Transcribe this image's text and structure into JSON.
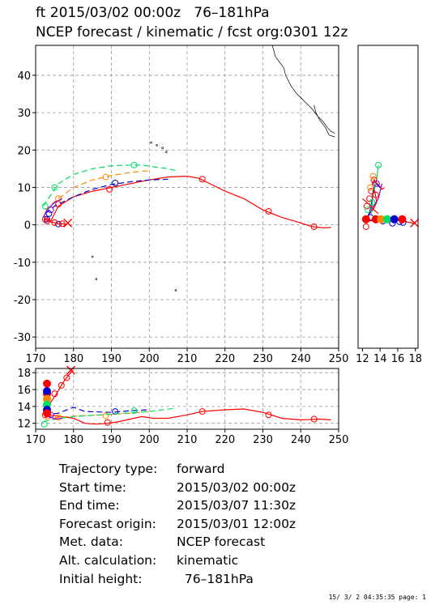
{
  "header": {
    "line1": "ft 2015/03/02 00:00z   76–181hPa",
    "line2": "NCEP forecast / kinematic / fcst org:0301 12z"
  },
  "info": [
    {
      "key": "Trajectory type:",
      "value": "forward"
    },
    {
      "key": "Start time:",
      "value": "2015/03/02 00:00z"
    },
    {
      "key": "End time:",
      "value": "2015/03/07 11:30z"
    },
    {
      "key": "Forecast origin:",
      "value": "2015/03/01 12:00z"
    },
    {
      "key": "Met. data:",
      "value": "NCEP forecast"
    },
    {
      "key": "Alt. calculation:",
      "value": "kinematic"
    },
    {
      "key": "Initial height:",
      "value": "  76–181hPa"
    }
  ],
  "footer": "15/ 3/ 2 04:35:35 page: 1",
  "colors": {
    "red": "#ff0000",
    "blue": "#0000cc",
    "orange": "#ff8800",
    "green": "#00dd66",
    "purple": "#8800cc",
    "grid": "#999999"
  },
  "chart_data": [
    {
      "type": "line",
      "panel": "main",
      "xlim": [
        170,
        250
      ],
      "ylim": [
        -33,
        48
      ],
      "xticks": [
        170,
        180,
        190,
        200,
        210,
        220,
        230,
        240,
        250
      ],
      "yticks": [
        -30,
        -20,
        -10,
        0,
        10,
        20,
        30,
        40
      ],
      "grid": true,
      "series": [
        {
          "color": "red",
          "dash": false,
          "points": [
            [
              172.5,
              1.5
            ],
            [
              174,
              1
            ],
            [
              176,
              5
            ],
            [
              180,
              7.5
            ],
            [
              185,
              9
            ],
            [
              190,
              10
            ],
            [
              195,
              11
            ],
            [
              200,
              12
            ],
            [
              205,
              12.8
            ],
            [
              210,
              13
            ],
            [
              213,
              12.5
            ],
            [
              215,
              11.5
            ],
            [
              220,
              9
            ],
            [
              225,
              7
            ],
            [
              230,
              4
            ],
            [
              235,
              2
            ],
            [
              240,
              0.5
            ],
            [
              243,
              -0.5
            ],
            [
              246,
              -0.8
            ],
            [
              248,
              -0.7
            ]
          ],
          "markers": [
            [
              176,
              5.5
            ],
            [
              189.5,
              9.5
            ],
            [
              214,
              12.2
            ],
            [
              231.5,
              3.6
            ],
            [
              243.5,
              -0.5
            ],
            [
              172.5,
              1.5
            ]
          ]
        },
        {
          "color": "blue",
          "dash": true,
          "points": [
            [
              172.5,
              3
            ],
            [
              175,
              5
            ],
            [
              180,
              7.5
            ],
            [
              185,
              9.5
            ],
            [
              190,
              10.8
            ],
            [
              195,
              11.5
            ],
            [
              200,
              12
            ],
            [
              205,
              12.2
            ]
          ],
          "markers": [
            [
              173.5,
              3
            ],
            [
              191,
              11.2
            ],
            [
              173,
              1.5
            ],
            [
              176,
              0.2
            ]
          ]
        },
        {
          "color": "orange",
          "dash": true,
          "points": [
            [
              172.5,
              4
            ],
            [
              176,
              7
            ],
            [
              180,
              10
            ],
            [
              185,
              12
            ],
            [
              190,
              13.2
            ],
            [
              195,
              14
            ],
            [
              200,
              14.5
            ]
          ],
          "markers": [
            [
              176,
              7
            ],
            [
              188.5,
              12.8
            ]
          ]
        },
        {
          "color": "green",
          "dash": true,
          "points": [
            [
              172,
              5
            ],
            [
              174,
              8
            ],
            [
              176,
              11
            ],
            [
              180,
              13.5
            ],
            [
              185,
              15
            ],
            [
              190,
              15.8
            ],
            [
              195,
              16
            ],
            [
              198,
              16
            ],
            [
              205,
              15
            ],
            [
              207,
              14.5
            ]
          ],
          "markers": [
            [
              172.5,
              5
            ],
            [
              175,
              10
            ],
            [
              196,
              16
            ]
          ]
        },
        {
          "color": "purple",
          "dash": false,
          "points": [
            [
              172,
              2
            ],
            [
              173,
              4
            ],
            [
              175,
              6
            ],
            [
              177,
              7
            ]
          ],
          "markers": [
            [
              174,
              4
            ]
          ]
        },
        {
          "color": "red",
          "dash": false,
          "points": [
            [
              172.3,
              1.5
            ],
            [
              174,
              0.8
            ],
            [
              176,
              0.3
            ],
            [
              178,
              0.2
            ]
          ],
          "markers": [
            [
              173,
              1
            ],
            [
              175,
              0.6
            ],
            [
              177,
              0.3
            ]
          ]
        }
      ],
      "source_x": [
        178.5,
        0.5
      ]
    },
    {
      "type": "line",
      "panel": "side",
      "xlim": [
        11.5,
        18.3
      ],
      "ylim": [
        -33,
        48
      ],
      "xticks": [
        12,
        14,
        16,
        18
      ],
      "grid": false,
      "series": [
        {
          "color": "red",
          "dash": false,
          "points": [
            [
              12.4,
              1.5
            ],
            [
              12.8,
              3
            ],
            [
              13.2,
              4
            ],
            [
              13.6,
              6
            ],
            [
              13.4,
              9
            ],
            [
              13.1,
              11
            ],
            [
              13.3,
              12
            ],
            [
              13.7,
              11
            ],
            [
              14.2,
              9.5
            ],
            [
              14.5,
              10
            ]
          ]
        },
        {
          "color": "blue",
          "dash": false,
          "points": [
            [
              12.6,
              2
            ],
            [
              13,
              5
            ],
            [
              13.2,
              9
            ],
            [
              13.5,
              11
            ],
            [
              14,
              10
            ]
          ]
        },
        {
          "color": "green",
          "dash": false,
          "points": [
            [
              13,
              3
            ],
            [
              13.2,
              8
            ],
            [
              13.6,
              12
            ],
            [
              13.8,
              16
            ]
          ]
        },
        {
          "color": "purple",
          "dash": false,
          "points": [
            [
              12.5,
              1.5
            ],
            [
              13,
              4
            ],
            [
              13.8,
              7
            ],
            [
              14.2,
              11
            ]
          ]
        },
        {
          "color": "red",
          "dash": false,
          "points": [
            [
              12,
              7
            ],
            [
              12.5,
              6
            ],
            [
              13,
              5
            ],
            [
              13.3,
              4
            ],
            [
              13.8,
              3
            ]
          ]
        },
        {
          "color": "red",
          "dash": false,
          "points": [
            [
              12.4,
              1
            ],
            [
              14,
              1.3
            ],
            [
              15,
              1.3
            ],
            [
              16,
              1.2
            ],
            [
              17,
              0.8
            ],
            [
              18,
              0.3
            ]
          ]
        }
      ],
      "markers": [
        {
          "color": "red",
          "points": [
            [
              12.5,
              5
            ],
            [
              12.8,
              7
            ],
            [
              13,
              9
            ],
            [
              13.3,
              12
            ],
            [
              12.4,
              -0.5
            ],
            [
              13.5,
              8
            ]
          ]
        },
        {
          "color": "orange",
          "points": [
            [
              13.2,
              13
            ],
            [
              12.9,
              10
            ]
          ]
        },
        {
          "color": "green",
          "points": [
            [
              13.8,
              16
            ],
            [
              12.6,
              4
            ],
            [
              13.1,
              6
            ]
          ]
        },
        {
          "color": "blue",
          "points": [
            [
              14.3,
              1
            ],
            [
              16.2,
              0.8
            ],
            [
              15.4,
              0.4
            ],
            [
              16.6,
              0.6
            ],
            [
              12.9,
              2
            ]
          ]
        },
        {
          "color": "purple",
          "points": [
            [
              13.6,
              11
            ]
          ]
        }
      ],
      "filled": [
        {
          "color": "red",
          "points": [
            [
              12.4,
              1.5
            ],
            [
              13.5,
              1.5
            ]
          ]
        },
        {
          "color": "orange",
          "points": [
            [
              14.1,
              1.5
            ]
          ]
        },
        {
          "color": "green",
          "points": [
            [
              14.8,
              1.5
            ]
          ]
        },
        {
          "color": "blue",
          "points": [
            [
              15.6,
              1.5
            ]
          ]
        },
        {
          "color": "red",
          "points": [
            [
              16.5,
              1.5
            ]
          ]
        }
      ],
      "cross": [
        17.9,
        0.5
      ]
    },
    {
      "type": "line",
      "panel": "bottom",
      "xlim": [
        170,
        250
      ],
      "ylim": [
        11.3,
        18.5
      ],
      "xticks": [
        170,
        180,
        190,
        200,
        210,
        220,
        230,
        240,
        250
      ],
      "yticks": [
        12,
        14,
        16,
        18
      ],
      "grid": true,
      "series": [
        {
          "color": "red",
          "dash": false,
          "points": [
            [
              172.5,
              13
            ],
            [
              175,
              12.9
            ],
            [
              180,
              12.6
            ],
            [
              183,
              12
            ],
            [
              186,
              11.9
            ],
            [
              189,
              12
            ],
            [
              192,
              12.2
            ],
            [
              195,
              12.5
            ],
            [
              198,
              12.8
            ],
            [
              201,
              12.6
            ],
            [
              205,
              12.6
            ],
            [
              210,
              13
            ],
            [
              214,
              13.4
            ],
            [
              220,
              13.6
            ],
            [
              225,
              13.7
            ],
            [
              230,
              13.3
            ],
            [
              235,
              12.6
            ],
            [
              240,
              12.4
            ],
            [
              245,
              12.5
            ],
            [
              248,
              12.4
            ]
          ],
          "markers": [
            [
              172.5,
              13
            ],
            [
              189,
              12.1
            ],
            [
              214,
              13.4
            ],
            [
              231.5,
              13
            ],
            [
              243.5,
              12.5
            ]
          ]
        },
        {
          "color": "blue",
          "dash": true,
          "points": [
            [
              172.5,
              13
            ],
            [
              176,
              13.2
            ],
            [
              180,
              13.9
            ],
            [
              183,
              13.4
            ],
            [
              190,
              13.3
            ],
            [
              195,
              13.5
            ],
            [
              200,
              13.6
            ]
          ],
          "markers": [
            [
              191,
              13.4
            ],
            [
              173,
              14.3
            ]
          ]
        },
        {
          "color": "orange",
          "dash": true,
          "points": [
            [
              172.5,
              12.5
            ],
            [
              176,
              12.7
            ],
            [
              182,
              12.9
            ],
            [
              188,
              13
            ],
            [
              195,
              13.2
            ],
            [
              200,
              13.4
            ]
          ],
          "markers": [
            [
              188.5,
              12.9
            ],
            [
              176,
              12.7
            ]
          ]
        },
        {
          "color": "green",
          "dash": true,
          "points": [
            [
              172,
              12.2
            ],
            [
              175,
              12.5
            ],
            [
              180,
              12.8
            ],
            [
              190,
              13.1
            ],
            [
              200,
              13.4
            ],
            [
              207,
              13.8
            ]
          ],
          "markers": [
            [
              172.3,
              11.9
            ],
            [
              196,
              13.5
            ]
          ]
        },
        {
          "color": "purple",
          "dash": false,
          "points": [
            [
              172,
              13.5
            ],
            [
              173,
              13
            ],
            [
              175,
              12.5
            ],
            [
              177,
              12.6
            ]
          ],
          "markers": [
            [
              174,
              13
            ]
          ]
        },
        {
          "color": "red",
          "dash": false,
          "points": [
            [
              172.8,
              13.6
            ],
            [
              174,
              14.5
            ],
            [
              175.5,
              15.5
            ],
            [
              176.5,
              16.3
            ],
            [
              177.5,
              17
            ],
            [
              178.5,
              17.6
            ],
            [
              179.8,
              18.3
            ]
          ],
          "markers": [
            [
              175,
              15.5
            ],
            [
              176.8,
              16.5
            ],
            [
              178.2,
              17.4
            ]
          ]
        }
      ],
      "filled": [
        {
          "color": "red",
          "points": [
            [
              173,
              16.7
            ],
            [
              173,
              15.5
            ]
          ]
        },
        {
          "color": "blue",
          "points": [
            [
              173,
              15.8
            ]
          ]
        },
        {
          "color": "orange",
          "points": [
            [
              173,
              14.9
            ]
          ]
        },
        {
          "color": "green",
          "points": [
            [
              173,
              14.2
            ]
          ]
        },
        {
          "color": "blue",
          "points": [
            [
              173,
              13.6
            ]
          ]
        },
        {
          "color": "red",
          "points": [
            [
              173,
              13.2
            ]
          ]
        }
      ],
      "cross": [
        179.3,
        18.3
      ]
    }
  ]
}
